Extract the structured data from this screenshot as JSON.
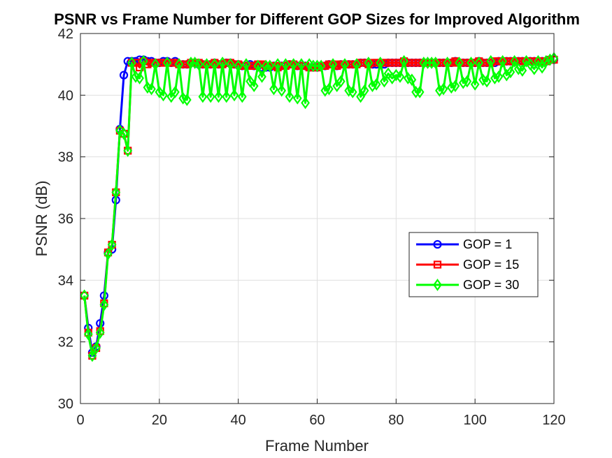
{
  "chart_data": {
    "type": "line",
    "title": "PSNR vs Frame Number for Different GOP Sizes for Improved Algorithm",
    "xlabel": "Frame Number",
    "ylabel": "PSNR (dB)",
    "xlim": [
      0,
      120
    ],
    "ylim": [
      30,
      42
    ],
    "xticks": [
      "0",
      "20",
      "40",
      "60",
      "80",
      "100",
      "120"
    ],
    "yticks": [
      "30",
      "32",
      "34",
      "36",
      "38",
      "40",
      "42"
    ],
    "grid": true,
    "legend_position": "right",
    "series": [
      {
        "name": "GOP = 1",
        "color": "#0000ff",
        "marker": "circle",
        "values": [
          33.5,
          32.45,
          31.65,
          31.85,
          32.6,
          33.5,
          34.9,
          35.0,
          36.6,
          38.9,
          40.65,
          41.1,
          41.1,
          41.1,
          41.15,
          41.15,
          41.1,
          41.1,
          41.05,
          41.05,
          41.1,
          41.1,
          41.05,
          41.1,
          41.0,
          41.0,
          41.0,
          41.05,
          41.05,
          41.0,
          41.0,
          41.0,
          41.0,
          41.05,
          41.0,
          41.0,
          41.05,
          41.05,
          41.0,
          41.0,
          40.95,
          40.95,
          41.0,
          40.95,
          40.95,
          40.9,
          40.9,
          40.9,
          40.95,
          40.9,
          40.95,
          40.95,
          41.0,
          41.0,
          40.95,
          40.95,
          40.95,
          40.9,
          40.9,
          40.9,
          40.95,
          40.95,
          41.0,
          41.0,
          40.95,
          41.0,
          41.0,
          41.0,
          41.0,
          41.0,
          41.05,
          41.05,
          41.0,
          41.0,
          41.0,
          41.05,
          41.0,
          41.05,
          41.05,
          41.05,
          41.05,
          41.1,
          41.05,
          41.05,
          41.05,
          41.05,
          41.05,
          41.05,
          41.05,
          41.05,
          41.05,
          41.05,
          41.05,
          41.05,
          41.1,
          41.05,
          41.05,
          41.05,
          41.05,
          41.05,
          41.1,
          41.05,
          41.05,
          41.05,
          41.05,
          41.1,
          41.1,
          41.1,
          41.1,
          41.1,
          41.1,
          41.1,
          41.1,
          41.1,
          41.1,
          41.1,
          41.1,
          41.1,
          41.15,
          41.15
        ]
      },
      {
        "name": "GOP = 15",
        "color": "#ff0000",
        "marker": "square",
        "values": [
          33.5,
          32.3,
          31.55,
          31.8,
          32.35,
          33.25,
          34.9,
          35.15,
          36.85,
          38.85,
          38.75,
          38.2,
          41.05,
          41.05,
          40.9,
          41.1,
          41.0,
          41.05,
          41.05,
          41.05,
          41.05,
          41.05,
          41.05,
          41.05,
          41.0,
          41.0,
          41.0,
          41.05,
          41.05,
          41.05,
          41.0,
          41.0,
          41.0,
          41.05,
          41.0,
          41.0,
          41.05,
          41.05,
          41.0,
          41.0,
          40.95,
          40.95,
          40.95,
          40.95,
          41.0,
          41.0,
          40.95,
          40.95,
          40.95,
          40.9,
          40.95,
          40.95,
          41.0,
          41.0,
          40.95,
          40.95,
          40.95,
          40.9,
          40.9,
          40.9,
          40.95,
          40.95,
          41.0,
          41.0,
          40.95,
          41.0,
          41.0,
          41.0,
          41.0,
          41.0,
          41.05,
          41.05,
          41.0,
          41.05,
          41.05,
          41.05,
          41.05,
          41.05,
          41.05,
          41.05,
          41.05,
          41.1,
          41.05,
          41.05,
          41.05,
          41.05,
          41.05,
          41.05,
          41.05,
          41.05,
          41.05,
          41.05,
          41.05,
          41.05,
          41.1,
          41.05,
          41.05,
          41.05,
          41.05,
          41.05,
          41.1,
          41.05,
          41.05,
          41.05,
          41.1,
          41.1,
          41.1,
          41.1,
          41.1,
          41.1,
          41.1,
          41.1,
          41.1,
          41.1,
          41.1,
          41.1,
          41.1,
          41.1,
          41.15,
          41.15
        ]
      },
      {
        "name": "GOP = 30",
        "color": "#00ff00",
        "marker": "diamond",
        "values": [
          33.5,
          32.25,
          31.55,
          31.8,
          32.3,
          33.2,
          34.85,
          35.15,
          36.85,
          38.85,
          38.75,
          38.2,
          41.05,
          40.6,
          40.55,
          41.1,
          40.25,
          40.2,
          41.0,
          40.1,
          40.0,
          41.05,
          39.95,
          40.1,
          41.0,
          39.9,
          39.85,
          41.05,
          41.05,
          41.0,
          39.95,
          41.0,
          39.95,
          41.0,
          39.95,
          41.05,
          39.95,
          41.0,
          40.0,
          40.95,
          39.95,
          41.0,
          40.45,
          40.3,
          40.95,
          40.6,
          40.95,
          40.95,
          40.2,
          41.0,
          40.15,
          41.0,
          39.95,
          41.0,
          39.9,
          41.0,
          39.75,
          41.0,
          40.95,
          40.95,
          40.95,
          40.15,
          40.2,
          41.0,
          40.3,
          40.45,
          41.0,
          40.15,
          40.1,
          41.0,
          39.95,
          40.15,
          41.05,
          40.3,
          40.35,
          41.05,
          40.45,
          40.7,
          40.55,
          40.65,
          40.6,
          41.1,
          40.55,
          40.5,
          40.1,
          40.1,
          41.05,
          41.05,
          41.05,
          41.05,
          40.15,
          40.2,
          41.05,
          40.25,
          40.3,
          41.05,
          40.4,
          40.45,
          41.05,
          40.35,
          41.05,
          40.5,
          40.45,
          41.1,
          40.55,
          40.6,
          41.1,
          40.65,
          40.75,
          41.1,
          40.85,
          40.8,
          41.1,
          41.0,
          40.85,
          41.1,
          40.9,
          41.1,
          41.15,
          41.2
        ]
      }
    ]
  }
}
